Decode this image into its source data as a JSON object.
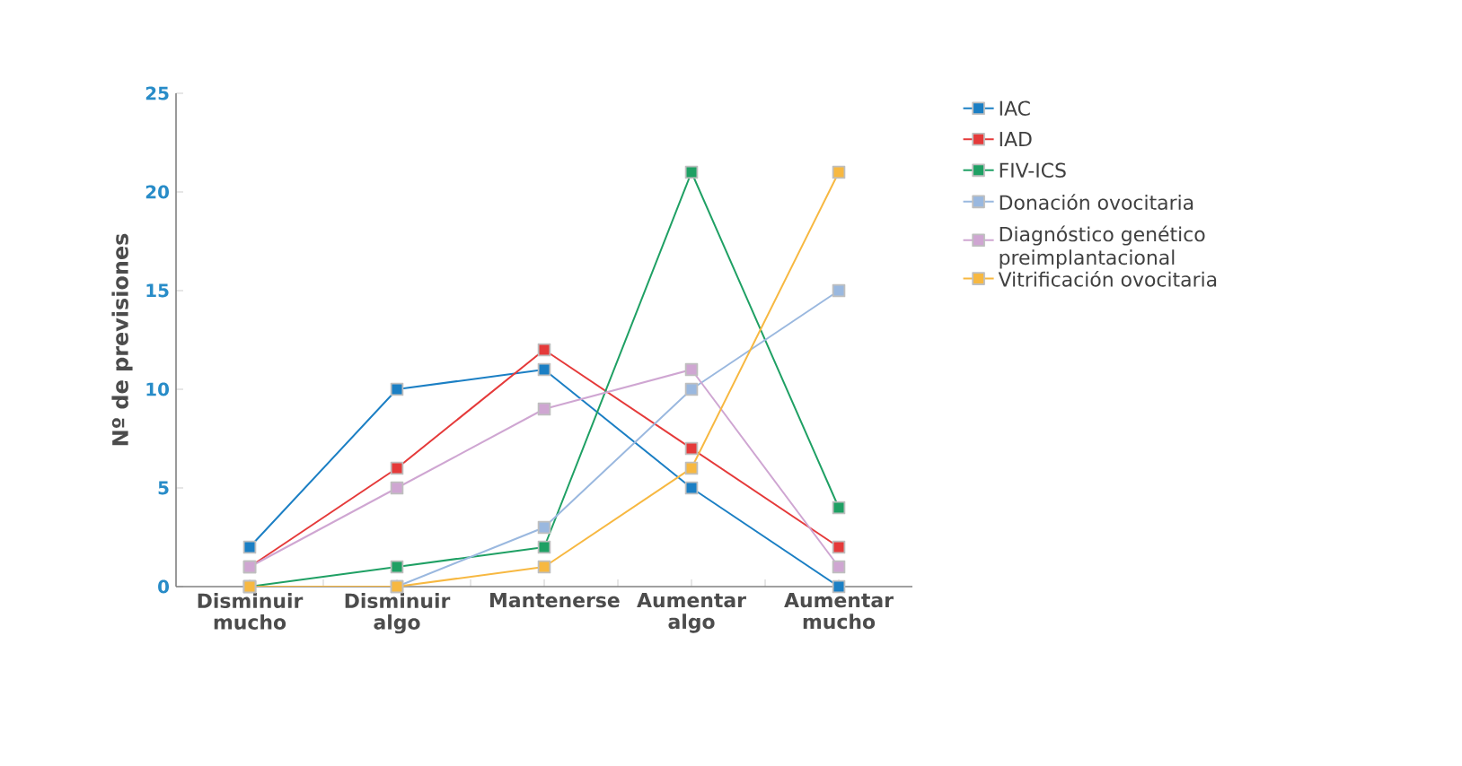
{
  "chart_data": {
    "type": "line",
    "ylabel": "Nº de previsiones",
    "categories": [
      "Disminuir mucho",
      "Disminuir algo",
      "Mantenerse",
      "Aumentar algo",
      "Aumentar mucho"
    ],
    "ylim": [
      0,
      25
    ],
    "yticks": [
      0,
      5,
      10,
      15,
      20,
      25
    ],
    "grid": false,
    "legend": "right",
    "marker": "square",
    "line_style": "solid",
    "series": [
      {
        "name": "IAC",
        "color": "#1b7fc4",
        "values": [
          2,
          10,
          11,
          5,
          0
        ]
      },
      {
        "name": "IAD",
        "color": "#e53a3a",
        "values": [
          1,
          6,
          12,
          7,
          2
        ]
      },
      {
        "name": "FIV-ICS",
        "color": "#1fa064",
        "values": [
          0,
          1,
          2,
          21,
          4
        ]
      },
      {
        "name": "Donación ovocitaria",
        "color": "#9ab8df",
        "values": [
          0,
          0,
          3,
          10,
          15
        ]
      },
      {
        "name": "Diagnóstico genético preimplantacional",
        "color": "#cfa6d2",
        "values": [
          1,
          5,
          9,
          11,
          1
        ]
      },
      {
        "name": "Vitrificación ovocitaria",
        "color": "#f7b841",
        "values": [
          0,
          0,
          1,
          6,
          21
        ]
      }
    ]
  }
}
